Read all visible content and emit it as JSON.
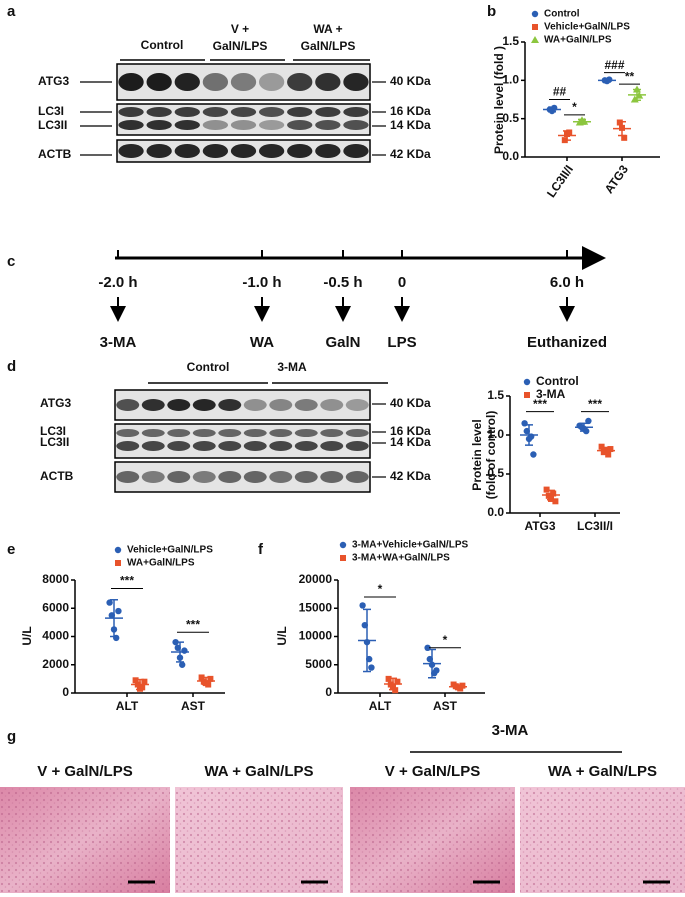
{
  "panel_labels": [
    "a",
    "b",
    "c",
    "d",
    "e",
    "f",
    "g"
  ],
  "blot_a": {
    "headers": [
      [
        "Control"
      ],
      [
        "V +",
        "GalN/LPS"
      ],
      [
        "WA +",
        "GalN/LPS"
      ]
    ],
    "rows": [
      "ATG3",
      "LC3I",
      "LC3II",
      "ACTB"
    ],
    "sizes": [
      "40 KDa",
      "16 KDa",
      "14 KDa",
      "42 KDa"
    ]
  },
  "timeline": {
    "times": [
      "-2.0 h",
      "-1.0 h",
      "-0.5 h",
      "0",
      "6.0 h"
    ],
    "events": [
      "3-MA",
      "WA",
      "GalN",
      "LPS",
      "Euthanized"
    ]
  },
  "blot_d": {
    "headers": [
      "Control",
      "3-MA"
    ],
    "rows": [
      "ATG3",
      "LC3I",
      "LC3II",
      "ACTB"
    ],
    "sizes": [
      "40 KDa",
      "16 KDa",
      "14 KDa",
      "42 KDa"
    ]
  },
  "chart_data": [
    {
      "type": "dotplot",
      "ylabel": "Protein level (fold )",
      "categories": [
        "LC3II/I",
        "ATG3"
      ],
      "series": [
        {
          "name": "Control",
          "color": "#2b5fb4",
          "marker": "circle",
          "values": [
            [
              0.62,
              0.6,
              0.64
            ],
            [
              1.0,
              0.99,
              1.01
            ]
          ],
          "means": [
            0.62,
            1.0
          ],
          "errors": [
            0.03,
            0.02
          ]
        },
        {
          "name": "Vehicle+GalN/LPS",
          "color": "#e8532b",
          "marker": "square",
          "values": [
            [
              0.22,
              0.3,
              0.32
            ],
            [
              0.45,
              0.38,
              0.25
            ]
          ],
          "means": [
            0.28,
            0.37
          ],
          "errors": [
            0.06,
            0.09
          ]
        },
        {
          "name": "WA+GalN/LPS",
          "color": "#8cc63f",
          "marker": "triangle",
          "values": [
            [
              0.45,
              0.48,
              0.46
            ],
            [
              0.75,
              0.88,
              0.8
            ]
          ],
          "means": [
            0.46,
            0.81
          ],
          "errors": [
            0.03,
            0.07
          ]
        }
      ],
      "ylim": [
        0,
        1.5
      ],
      "yticks": [
        {
          "value": 0,
          "label": "0.0"
        },
        {
          "value": 0.5,
          "label": "0.5"
        },
        {
          "value": 1,
          "label": "1.0"
        },
        {
          "value": 1.5,
          "label": "1.5"
        }
      ],
      "annotations": [
        "##",
        "*",
        "###",
        "**"
      ]
    },
    {
      "type": "dotplot",
      "ylabel": [
        "Protein level",
        "(fold of control)"
      ],
      "categories": [
        "ATG3",
        "LC3II/I"
      ],
      "series": [
        {
          "name": "Control",
          "color": "#2b5fb4",
          "marker": "circle",
          "values": [
            [
              1.15,
              1.05,
              0.95,
              0.98,
              0.75
            ],
            [
              1.12,
              1.1,
              1.08,
              1.05,
              1.18
            ]
          ],
          "means": [
            1.0,
            1.1
          ],
          "errors": [
            0.13,
            0.05
          ]
        },
        {
          "name": "3-MA",
          "color": "#e8532b",
          "marker": "square",
          "values": [
            [
              0.3,
              0.22,
              0.18,
              0.25,
              0.15
            ],
            [
              0.85,
              0.78,
              0.8,
              0.75,
              0.82
            ]
          ],
          "means": [
            0.23,
            0.8
          ],
          "errors": [
            0.06,
            0.04
          ]
        }
      ],
      "ylim": [
        0,
        1.5
      ],
      "yticks": [
        {
          "value": 0,
          "label": "0.0"
        },
        {
          "value": 0.5,
          "label": "0.5"
        },
        {
          "value": 1,
          "label": "1.0"
        },
        {
          "value": 1.5,
          "label": "1.5"
        }
      ],
      "annotations": [
        "***",
        "***"
      ]
    },
    {
      "type": "dotplot",
      "ylabel": "U/L",
      "categories": [
        "ALT",
        "AST"
      ],
      "series": [
        {
          "name": "Vehicle+GalN/LPS",
          "color": "#2b5fb4",
          "marker": "circle",
          "values": [
            [
              6400,
              5500,
              4500,
              3900,
              5800
            ],
            [
              3600,
              3200,
              2500,
              2000,
              3000
            ]
          ],
          "means": [
            5300,
            2900
          ],
          "errors": [
            1300,
            700
          ]
        },
        {
          "name": "WA+GalN/LPS",
          "color": "#e8532b",
          "marker": "square",
          "values": [
            [
              900,
              600,
              300,
              400,
              800
            ],
            [
              1100,
              800,
              700,
              600,
              1000
            ]
          ],
          "means": [
            600,
            850
          ],
          "errors": [
            350,
            250
          ]
        }
      ],
      "ylim": [
        0,
        8000
      ],
      "yticks": [
        0,
        2000,
        4000,
        6000,
        8000
      ],
      "annotations": [
        "***",
        "***"
      ]
    },
    {
      "type": "dotplot",
      "ylabel": "U/L",
      "categories": [
        "ALT",
        "AST"
      ],
      "series": [
        {
          "name": "3-MA+Vehicle+GalN/LPS",
          "color": "#2b5fb4",
          "marker": "circle",
          "values": [
            [
              15500,
              12000,
              9000,
              6000,
              4500
            ],
            [
              8000,
              6000,
              5000,
              3500,
              4000
            ]
          ],
          "means": [
            9300,
            5200
          ],
          "errors": [
            5500,
            2500
          ]
        },
        {
          "name": "3-MA+WA+GalN/LPS",
          "color": "#e8532b",
          "marker": "square",
          "values": [
            [
              2500,
              1500,
              1000,
              500,
              2000
            ],
            [
              1500,
              1200,
              1000,
              800,
              1300
            ]
          ],
          "means": [
            1600,
            1100
          ],
          "errors": [
            1000,
            300
          ]
        }
      ],
      "ylim": [
        0,
        20000
      ],
      "yticks": [
        0,
        5000,
        10000,
        15000,
        20000
      ],
      "annotations": [
        "*",
        "*"
      ]
    }
  ],
  "histology": {
    "group_header": "3-MA",
    "labels": [
      "V + GalN/LPS",
      "WA + GalN/LPS",
      "V + GalN/LPS",
      "WA + GalN/LPS"
    ]
  }
}
